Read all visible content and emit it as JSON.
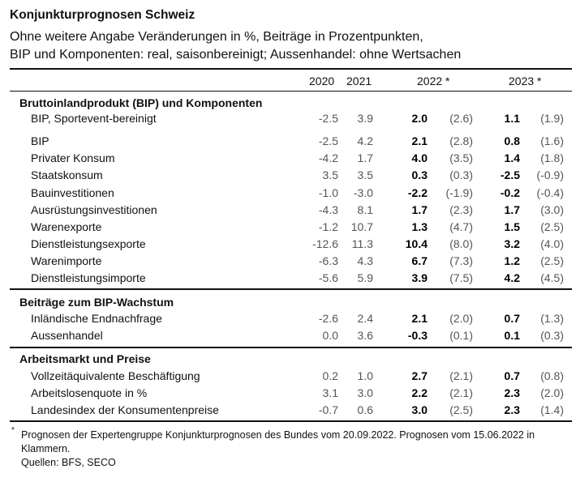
{
  "title": "Konjunkturprognosen Schweiz",
  "subtitle_lines": [
    "Ohne weitere Angabe Veränderungen in %, Beiträge in Prozentpunkten,",
    "BIP und Komponenten: real, saisonbereinigt; Aussenhandel: ohne Wertsachen"
  ],
  "columns": [
    "2020",
    "2021",
    "2022 *",
    "2023 *"
  ],
  "sections": [
    {
      "heading": "Bruttoinlandprodukt (BIP) und Komponenten",
      "rows": [
        {
          "label": "BIP, Sportevent-bereinigt",
          "v2020": "-2.5",
          "v2021": "3.9",
          "v2022": "2.0",
          "p2022": "(2.6)",
          "v2023": "1.1",
          "p2023": "(1.9)"
        },
        {
          "label": "BIP",
          "v2020": "-2.5",
          "v2021": "4.2",
          "v2022": "2.1",
          "p2022": "(2.8)",
          "v2023": "0.8",
          "p2023": "(1.6)"
        },
        {
          "label": "Privater Konsum",
          "v2020": "-4.2",
          "v2021": "1.7",
          "v2022": "4.0",
          "p2022": "(3.5)",
          "v2023": "1.4",
          "p2023": "(1.8)"
        },
        {
          "label": "Staatskonsum",
          "v2020": "3.5",
          "v2021": "3.5",
          "v2022": "0.3",
          "p2022": "(0.3)",
          "v2023": "-2.5",
          "p2023": "(-0.9)"
        },
        {
          "label": "Bauinvestitionen",
          "v2020": "-1.0",
          "v2021": "-3.0",
          "v2022": "-2.2",
          "p2022": "(-1.9)",
          "v2023": "-0.2",
          "p2023": "(-0.4)"
        },
        {
          "label": "Ausrüstungsinvestitionen",
          "v2020": "-4.3",
          "v2021": "8.1",
          "v2022": "1.7",
          "p2022": "(2.3)",
          "v2023": "1.7",
          "p2023": "(3.0)"
        },
        {
          "label": "Warenexporte",
          "v2020": "-1.2",
          "v2021": "10.7",
          "v2022": "1.3",
          "p2022": "(4.7)",
          "v2023": "1.5",
          "p2023": "(2.5)"
        },
        {
          "label": "Dienstleistungsexporte",
          "v2020": "-12.6",
          "v2021": "11.3",
          "v2022": "10.4",
          "p2022": "(8.0)",
          "v2023": "3.2",
          "p2023": "(4.0)"
        },
        {
          "label": "Warenimporte",
          "v2020": "-6.3",
          "v2021": "4.3",
          "v2022": "6.7",
          "p2022": "(7.3)",
          "v2023": "1.2",
          "p2023": "(2.5)"
        },
        {
          "label": "Dienstleistungsimporte",
          "v2020": "-5.6",
          "v2021": "5.9",
          "v2022": "3.9",
          "p2022": "(7.5)",
          "v2023": "4.2",
          "p2023": "(4.5)"
        }
      ]
    },
    {
      "heading": "Beiträge zum BIP-Wachstum",
      "rows": [
        {
          "label": "Inländische Endnachfrage",
          "v2020": "-2.6",
          "v2021": "2.4",
          "v2022": "2.1",
          "p2022": "(2.0)",
          "v2023": "0.7",
          "p2023": "(1.3)"
        },
        {
          "label": "Aussenhandel",
          "v2020": "0.0",
          "v2021": "3.6",
          "v2022": "-0.3",
          "p2022": "(0.1)",
          "v2023": "0.1",
          "p2023": "(0.3)"
        }
      ]
    },
    {
      "heading": "Arbeitsmarkt und Preise",
      "rows": [
        {
          "label": "Vollzeitäquivalente Beschäftigung",
          "v2020": "0.2",
          "v2021": "1.0",
          "v2022": "2.7",
          "p2022": "(2.1)",
          "v2023": "0.7",
          "p2023": "(0.8)"
        },
        {
          "label": "Arbeitslosenquote in %",
          "v2020": "3.1",
          "v2021": "3.0",
          "v2022": "2.2",
          "p2022": "(2.1)",
          "v2023": "2.3",
          "p2023": "(2.0)"
        },
        {
          "label": "Landesindex der Konsumentenpreise",
          "v2020": "-0.7",
          "v2021": "0.6",
          "v2022": "3.0",
          "p2022": "(2.5)",
          "v2023": "2.3",
          "p2023": "(1.4)"
        }
      ]
    }
  ],
  "footnote": {
    "marker": "*",
    "lines": [
      "Prognosen der Expertengruppe Konjunkturprognosen des Bundes vom 20.09.2022. Prognosen vom 15.06.2022 in",
      "Klammern.",
      "Quellen: BFS, SECO"
    ]
  }
}
